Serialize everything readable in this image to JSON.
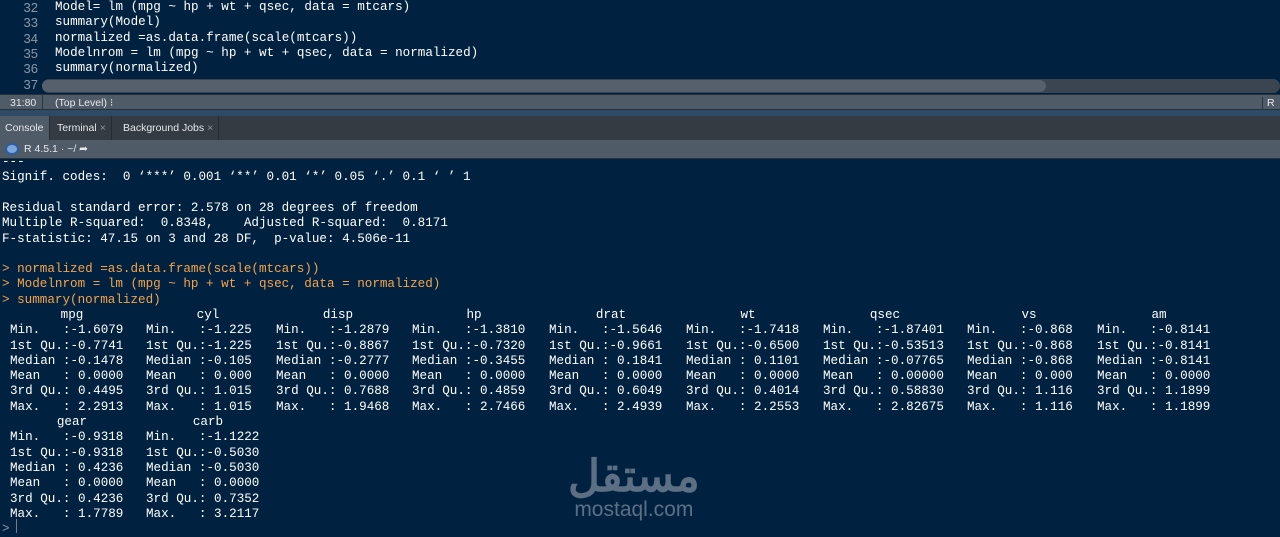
{
  "editor": {
    "lines": [
      {
        "num": "32",
        "code": "Model= lm (mpg ~ hp + wt + qsec, data = mtcars)"
      },
      {
        "num": "33",
        "code": "summary(Model)"
      },
      {
        "num": "34",
        "code": "normalized =as.data.frame(scale(mtcars))"
      },
      {
        "num": "35",
        "code": "Modelnrom = lm (mpg ~ hp + wt + qsec, data = normalized)"
      },
      {
        "num": "36",
        "code": "summary(normalized)"
      },
      {
        "num": "37",
        "code": ""
      }
    ]
  },
  "status": {
    "position": "31:80",
    "scope": "(Top Level) ⁝",
    "language": "R S"
  },
  "tabs": [
    {
      "label": "Console",
      "active": true
    },
    {
      "label": "Terminal",
      "close": "×"
    },
    {
      "label": "Background Jobs",
      "close": "×"
    }
  ],
  "console_toolbar": {
    "r_version": "R 4.5.1",
    "dir": "· ~/ ➦"
  },
  "console": {
    "output": [
      "---",
      "Signif. codes:  0 ‘***’ 0.001 ‘**’ 0.01 ‘*’ 0.05 ‘.’ 0.1 ‘ ’ 1",
      "",
      "Residual standard error: 2.578 on 28 degrees of freedom",
      "Multiple R-squared:  0.8348,\tAdjusted R-squared:  0.8171 ",
      "F-statistic: 47.15 on 3 and 28 DF,  p-value: 4.506e-11"
    ],
    "commands": [
      "> normalized =as.data.frame(scale(mtcars))",
      "> Modelnrom = lm (mpg ~ hp + wt + qsec, data = normalized)",
      "> summary(normalized)"
    ],
    "summary": [
      {
        "name": "mpg",
        "rows": [
          "Min.   :-1.6079",
          "1st Qu.:-0.7741",
          "Median :-0.1478",
          "Mean   : 0.0000",
          "3rd Qu.: 0.4495",
          "Max.   : 2.2913"
        ]
      },
      {
        "name": "cyl",
        "rows": [
          "Min.   :-1.225",
          "1st Qu.:-1.225",
          "Median :-0.105",
          "Mean   : 0.000",
          "3rd Qu.: 1.015",
          "Max.   : 1.015"
        ]
      },
      {
        "name": "disp",
        "rows": [
          "Min.   :-1.2879",
          "1st Qu.:-0.8867",
          "Median :-0.2777",
          "Mean   : 0.0000",
          "3rd Qu.: 0.7688",
          "Max.   : 1.9468"
        ]
      },
      {
        "name": "hp",
        "rows": [
          "Min.   :-1.3810",
          "1st Qu.:-0.7320",
          "Median :-0.3455",
          "Mean   : 0.0000",
          "3rd Qu.: 0.4859",
          "Max.   : 2.7466"
        ]
      },
      {
        "name": "drat",
        "rows": [
          "Min.   :-1.5646",
          "1st Qu.:-0.9661",
          "Median : 0.1841",
          "Mean   : 0.0000",
          "3rd Qu.: 0.6049",
          "Max.   : 2.4939"
        ]
      },
      {
        "name": "wt",
        "rows": [
          "Min.   :-1.7418",
          "1st Qu.:-0.6500",
          "Median : 0.1101",
          "Mean   : 0.0000",
          "3rd Qu.: 0.4014",
          "Max.   : 2.2553"
        ]
      },
      {
        "name": "qsec",
        "rows": [
          "Min.   :-1.87401",
          "1st Qu.:-0.53513",
          "Median :-0.07765",
          "Mean   : 0.00000",
          "3rd Qu.: 0.58830",
          "Max.   : 2.82675"
        ]
      },
      {
        "name": "vs",
        "rows": [
          "Min.   :-0.868",
          "1st Qu.:-0.868",
          "Median :-0.868",
          "Mean   : 0.000",
          "3rd Qu.: 1.116",
          "Max.   : 1.116"
        ]
      },
      {
        "name": "am",
        "rows": [
          "Min.   :-0.8141",
          "1st Qu.:-0.8141",
          "Median :-0.8141",
          "Mean   : 0.0000",
          "3rd Qu.: 1.1899",
          "Max.   : 1.1899"
        ]
      },
      {
        "name": "gear",
        "rows": [
          "Min.   :-0.9318",
          "1st Qu.:-0.9318",
          "Median : 0.4236",
          "Mean   : 0.0000",
          "3rd Qu.: 0.4236",
          "Max.   : 1.7789"
        ]
      },
      {
        "name": "carb",
        "rows": [
          "Min.   :-1.1222",
          "1st Qu.:-0.5030",
          "Median :-0.5030",
          "Mean   : 0.0000",
          "3rd Qu.: 0.7352",
          "Max.   : 3.2117"
        ]
      }
    ],
    "prompt": ">"
  },
  "watermark": {
    "arabic": "مستقل",
    "latin": "mostaql.com"
  },
  "colors": {
    "background": "#002240",
    "command": "#f5a34a",
    "text": "#ffffff"
  }
}
